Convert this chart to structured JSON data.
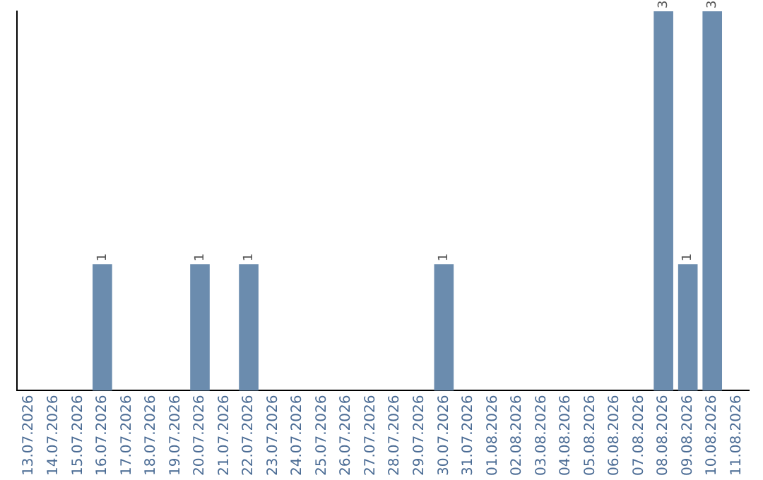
{
  "chart_data": {
    "type": "bar",
    "categories": [
      "13.07.2026",
      "14.07.2026",
      "15.07.2026",
      "16.07.2026",
      "17.07.2026",
      "18.07.2026",
      "19.07.2026",
      "20.07.2026",
      "21.07.2026",
      "22.07.2026",
      "23.07.2026",
      "24.07.2026",
      "25.07.2026",
      "26.07.2026",
      "27.07.2026",
      "28.07.2026",
      "29.07.2026",
      "30.07.2026",
      "31.07.2026",
      "01.08.2026",
      "02.08.2026",
      "03.08.2026",
      "04.08.2026",
      "05.08.2026",
      "06.08.2026",
      "07.08.2026",
      "08.08.2026",
      "09.08.2026",
      "10.08.2026",
      "11.08.2026"
    ],
    "values": [
      0,
      0,
      0,
      1,
      0,
      0,
      0,
      1,
      0,
      1,
      0,
      0,
      0,
      0,
      0,
      0,
      0,
      1,
      0,
      0,
      0,
      0,
      0,
      0,
      0,
      0,
      3,
      1,
      3,
      0
    ],
    "value_labels": [
      null,
      null,
      null,
      "1",
      null,
      null,
      null,
      "1",
      null,
      "1",
      null,
      null,
      null,
      null,
      null,
      null,
      null,
      "1",
      null,
      null,
      null,
      null,
      null,
      null,
      null,
      null,
      "3",
      "1",
      "3",
      null
    ],
    "color": "#6b8cae",
    "grid": false,
    "legend": false,
    "tick_labels": "x"
  }
}
